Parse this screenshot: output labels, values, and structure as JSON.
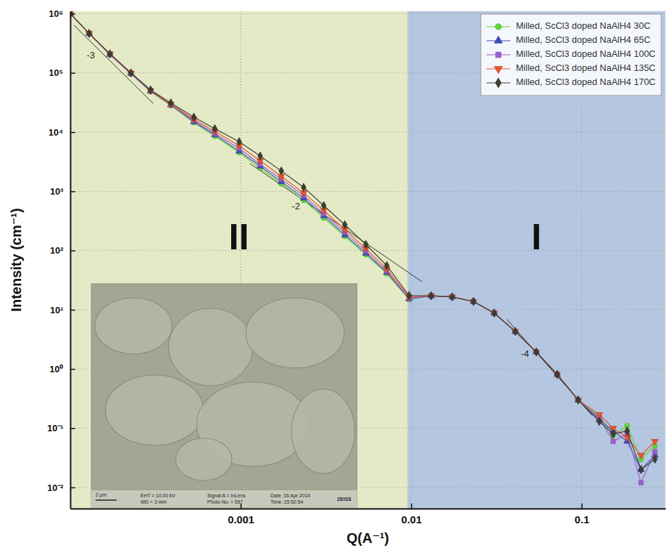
{
  "chart_data": {
    "type": "line",
    "x_label": "Q(A⁻¹)",
    "y_label": "Intensity (cm⁻¹)",
    "log": true,
    "grid": true,
    "legend": "upper right",
    "xlim": [
      0.0001,
      0.31
    ],
    "xticks": [
      0.001,
      0.01,
      0.1
    ],
    "ylim": [
      0.0044,
      1100000
    ],
    "yticks": [
      {
        "value": 0.01,
        "label": "10⁻²"
      },
      {
        "value": 0.1,
        "label": "10⁻¹"
      },
      {
        "value": 1,
        "label": "10⁰"
      },
      {
        "value": 10,
        "label": "10¹"
      },
      {
        "value": 100,
        "label": "10²"
      },
      {
        "value": 1000,
        "label": "10³"
      },
      {
        "value": 10000,
        "label": "10⁴"
      },
      {
        "value": 100000,
        "label": "10⁵"
      },
      {
        "value": 1000000,
        "label": "10⁶"
      }
    ],
    "x": [
      0.0001,
      0.000129,
      0.000171,
      0.000227,
      0.000296,
      0.000389,
      0.000531,
      0.000705,
      0.00098,
      0.0013,
      0.00173,
      0.00234,
      0.00307,
      0.00408,
      0.00542,
      0.00719,
      0.00972,
      0.0131,
      0.0174,
      0.0232,
      0.0307,
      0.0408,
      0.0542,
      0.0719,
      0.0954,
      0.127,
      0.153,
      0.185,
      0.223,
      0.269
    ],
    "series": [
      {
        "name": "Milled, ScCl3 doped NaAlH4 30C",
        "color": "#5fd63c",
        "marker": "circle",
        "values": [
          1000000,
          464000,
          204000,
          97400,
          48900,
          28100,
          14500,
          8530,
          4520,
          2460,
          1340,
          709,
          356,
          174,
          85.3,
          40.7,
          14.9,
          17.2,
          16.5,
          13.8,
          8.8,
          4.3,
          1.94,
          0.81,
          0.3,
          0.16,
          0.075,
          0.11,
          0.03,
          0.05
        ]
      },
      {
        "name": "Milled, ScCl3 doped NaAlH4 65C",
        "color": "#3f4fb8",
        "marker": "triangle",
        "values": [
          1000000,
          464000,
          204000,
          97400,
          48900,
          28800,
          14900,
          8990,
          4770,
          2660,
          1450,
          767,
          386,
          184,
          89.9,
          42.9,
          15.3,
          17.2,
          16.5,
          13.8,
          8.8,
          4.3,
          1.94,
          0.81,
          0.3,
          0.14,
          0.09,
          0.06,
          0.02,
          0.035
        ]
      },
      {
        "name": "Milled, ScCl3 doped NaAlH4 100C",
        "color": "#9a5fd0",
        "marker": "square",
        "values": [
          1000000,
          464000,
          204000,
          97400,
          50200,
          28800,
          15700,
          9480,
          5300,
          2880,
          1610,
          853,
          418,
          204,
          97.4,
          45.2,
          15.7,
          17.2,
          16.5,
          13.8,
          8.8,
          4.3,
          1.94,
          0.81,
          0.3,
          0.15,
          0.06,
          0.08,
          0.012,
          0.04
        ]
      },
      {
        "name": "Milled, ScCl3 doped NaAlH4 135C",
        "color": "#e8522e",
        "marker": "triangle-down",
        "values": [
          1000000,
          464000,
          210000,
          100000,
          50200,
          29600,
          16500,
          10300,
          5890,
          3290,
          1790,
          948,
          477,
          227,
          108,
          49.0,
          16.5,
          17.2,
          16.5,
          13.8,
          8.8,
          4.3,
          1.94,
          0.81,
          0.3,
          0.17,
          0.1,
          0.07,
          0.035,
          0.06
        ]
      },
      {
        "name": "Milled, ScCl3 doped NaAlH4 170C",
        "color": "#3e3d32",
        "marker": "diamond",
        "values": [
          1000000,
          464000,
          210000,
          100000,
          51600,
          31200,
          17900,
          11400,
          6900,
          3960,
          2210,
          1170,
          574,
          273,
          127,
          55.9,
          17.4,
          17.2,
          16.5,
          13.8,
          8.8,
          4.3,
          1.94,
          0.81,
          0.3,
          0.13,
          0.08,
          0.09,
          0.02,
          0.03
        ]
      }
    ],
    "regions": [
      {
        "label": "II",
        "x": [
          0.0001,
          0.0095
        ],
        "color": "#e4eac6"
      },
      {
        "label": "I",
        "x": [
          0.0095,
          0.31
        ],
        "color": "#b5c7e0"
      }
    ],
    "annotations": [
      {
        "text": "-3",
        "x": [
          0.000105,
          0.000307
        ],
        "y": [
          640000,
          30400
        ]
      },
      {
        "text": "-2",
        "x": [
          0.00113,
          0.0116
        ],
        "y": [
          2960,
          29.6
        ]
      },
      {
        "text": "-4",
        "x": [
          0.0364,
          0.115
        ],
        "y": [
          6.9,
          0.165
        ]
      }
    ],
    "inset": {
      "scale_bar": "2 µm",
      "fields": [
        "EHT = 10.00 kV",
        "WD =  3 mm",
        "Signal A = InLens",
        "Photo No. = 557",
        "Date :16 Apr 2014",
        "Time :15:52:54"
      ],
      "logo": "ZEISS"
    }
  }
}
